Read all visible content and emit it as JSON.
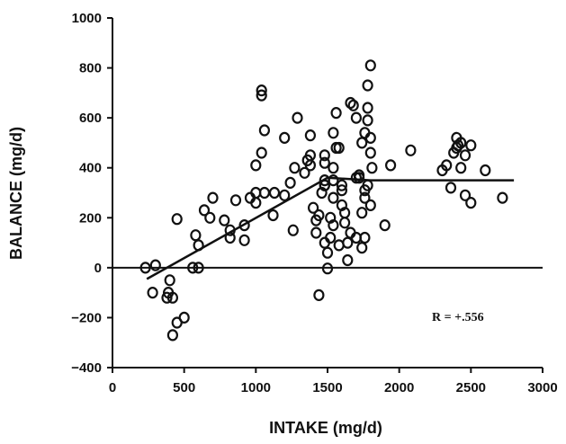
{
  "chart_data": {
    "type": "scatter",
    "xlabel": "INTAKE (mg/d)",
    "ylabel": "BALANCE (mg/d)",
    "xlim": [
      0,
      3000
    ],
    "ylim": [
      -400,
      1000
    ],
    "x_ticks": [
      "0",
      "500",
      "1000",
      "1500",
      "2000",
      "2500",
      "3000"
    ],
    "y_ticks": [
      "1000",
      "800",
      "600",
      "400",
      "200",
      "0",
      "-200",
      "-400"
    ],
    "grid": false,
    "annotation": "R = +.556",
    "reference_line_y": 0,
    "fit_line": [
      [
        240,
        -45
      ],
      [
        1500,
        360
      ],
      [
        1800,
        350
      ],
      [
        2800,
        350
      ]
    ],
    "points": [
      [
        230,
        0
      ],
      [
        300,
        10
      ],
      [
        280,
        -100
      ],
      [
        390,
        -100
      ],
      [
        380,
        -120
      ],
      [
        420,
        -120
      ],
      [
        400,
        -50
      ],
      [
        420,
        -270
      ],
      [
        450,
        -220
      ],
      [
        500,
        -200
      ],
      [
        450,
        195
      ],
      [
        560,
        0
      ],
      [
        600,
        0
      ],
      [
        580,
        130
      ],
      [
        600,
        90
      ],
      [
        640,
        230
      ],
      [
        680,
        200
      ],
      [
        700,
        280
      ],
      [
        780,
        190
      ],
      [
        820,
        150
      ],
      [
        820,
        120
      ],
      [
        860,
        270
      ],
      [
        920,
        170
      ],
      [
        920,
        110
      ],
      [
        960,
        280
      ],
      [
        1000,
        260
      ],
      [
        1000,
        300
      ],
      [
        1060,
        300
      ],
      [
        1000,
        410
      ],
      [
        1040,
        460
      ],
      [
        1060,
        550
      ],
      [
        1040,
        690
      ],
      [
        1040,
        710
      ],
      [
        1120,
        210
      ],
      [
        1130,
        300
      ],
      [
        1200,
        520
      ],
      [
        1200,
        290
      ],
      [
        1240,
        340
      ],
      [
        1260,
        150
      ],
      [
        1270,
        400
      ],
      [
        1290,
        600
      ],
      [
        1340,
        380
      ],
      [
        1360,
        430
      ],
      [
        1380,
        530
      ],
      [
        1380,
        450
      ],
      [
        1380,
        410
      ],
      [
        1400,
        240
      ],
      [
        1420,
        190
      ],
      [
        1420,
        140
      ],
      [
        1440,
        -110
      ],
      [
        1440,
        210
      ],
      [
        1460,
        300
      ],
      [
        1480,
        330
      ],
      [
        1480,
        330
      ],
      [
        1480,
        350
      ],
      [
        1480,
        420
      ],
      [
        1480,
        450
      ],
      [
        1480,
        100
      ],
      [
        1500,
        -3
      ],
      [
        1500,
        60
      ],
      [
        1520,
        120
      ],
      [
        1520,
        200
      ],
      [
        1540,
        280
      ],
      [
        1540,
        170
      ],
      [
        1540,
        350
      ],
      [
        1540,
        400
      ],
      [
        1540,
        540
      ],
      [
        1560,
        620
      ],
      [
        1560,
        480
      ],
      [
        1580,
        480
      ],
      [
        1580,
        90
      ],
      [
        1600,
        250
      ],
      [
        1600,
        330
      ],
      [
        1600,
        310
      ],
      [
        1620,
        180
      ],
      [
        1620,
        220
      ],
      [
        1640,
        100
      ],
      [
        1640,
        30
      ],
      [
        1660,
        140
      ],
      [
        1660,
        660
      ],
      [
        1680,
        650
      ],
      [
        1700,
        600
      ],
      [
        1700,
        120
      ],
      [
        1700,
        360
      ],
      [
        1720,
        370
      ],
      [
        1720,
        360
      ],
      [
        1740,
        500
      ],
      [
        1740,
        80
      ],
      [
        1760,
        120
      ],
      [
        1740,
        220
      ],
      [
        1760,
        280
      ],
      [
        1760,
        310
      ],
      [
        1760,
        540
      ],
      [
        1780,
        330
      ],
      [
        1780,
        590
      ],
      [
        1780,
        640
      ],
      [
        1780,
        730
      ],
      [
        1800,
        250
      ],
      [
        1800,
        460
      ],
      [
        1800,
        520
      ],
      [
        1800,
        810
      ],
      [
        1810,
        400
      ],
      [
        1900,
        170
      ],
      [
        1940,
        410
      ],
      [
        2080,
        470
      ],
      [
        2300,
        390
      ],
      [
        2330,
        410
      ],
      [
        2360,
        320
      ],
      [
        2380,
        460
      ],
      [
        2400,
        480
      ],
      [
        2400,
        520
      ],
      [
        2410,
        490
      ],
      [
        2430,
        500
      ],
      [
        2430,
        400
      ],
      [
        2460,
        450
      ],
      [
        2460,
        290
      ],
      [
        2500,
        490
      ],
      [
        2500,
        260
      ],
      [
        2600,
        390
      ],
      [
        2720,
        280
      ]
    ]
  }
}
